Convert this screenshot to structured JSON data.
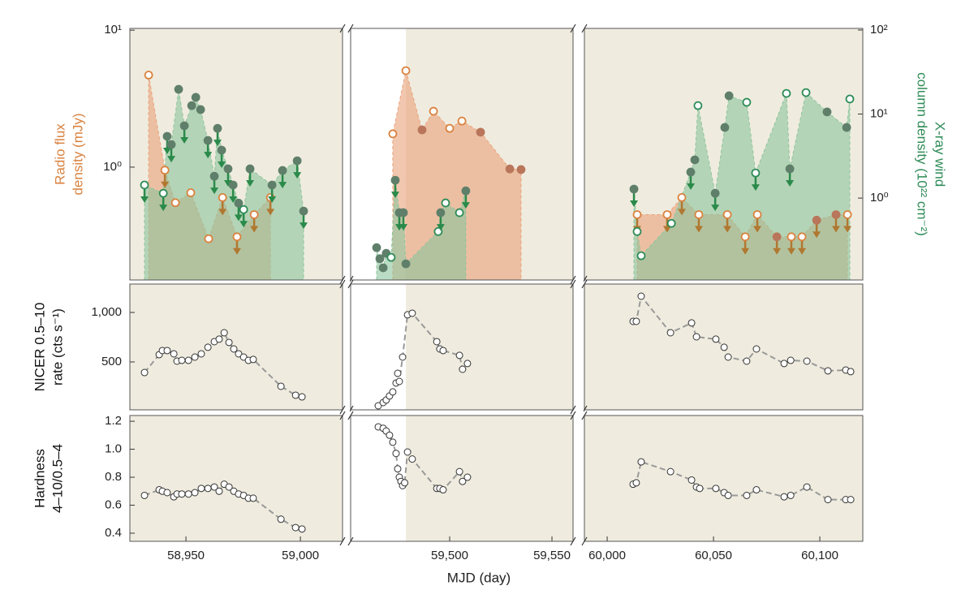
{
  "chart_data": [
    {
      "type": "scatter",
      "xlims": [
        [
          58925.5,
          59018.4
        ],
        [
          59451.6,
          59560.3
        ],
        [
          59989.3,
          60120.2
        ]
      ],
      "ylabel": [
        "Radio flux",
        "density (mJy)"
      ],
      "ylabel_color": "#d9823f",
      "ylim": [
        0.15,
        10.3
      ],
      "ylog": true,
      "yticks": [
        {
          "value": 10,
          "label": "10¹"
        },
        {
          "value": 1,
          "label": "10⁰"
        }
      ],
      "y2label": [
        "X-ray wind",
        "column density (10²² cm⁻²)"
      ],
      "y2label_color": "#2e8b57",
      "y2lim": [
        0.106,
        104.5
      ],
      "y2log": true,
      "y2ticks": [
        {
          "value": 100,
          "label": "10²"
        },
        {
          "value": 10,
          "label": "10¹"
        },
        {
          "value": 1,
          "label": "10⁰"
        }
      ],
      "series": [
        {
          "color": "#d9823f",
          "area_color": "#e9a27a",
          "filled_color": "#b9765a",
          "arrow_color": "#b07830",
          "x": [
            58933.7,
            58940.8,
            58945.4,
            58952.1,
            58959.9,
            58966,
            58972.3,
            58979.8,
            58986.9,
            59472.2,
            59478.6,
            59486.5,
            59492.1,
            59500,
            59506,
            59515.1,
            59529.4,
            59534.9,
            60014.1,
            60028.2,
            60035.1,
            60043.1,
            60056.5,
            60064.9,
            60070.6,
            60079.8,
            60086.6,
            60091.6,
            60098.5,
            60107.6,
            60113
          ],
          "values": [
            4.7,
            0.95,
            0.55,
            0.65,
            0.3,
            0.6,
            0.31,
            0.45,
            0.6,
            1.75,
            5.06,
            1.87,
            2.56,
            1.92,
            2.17,
            1.8,
            0.97,
            0.96,
            0.45,
            0.45,
            0.6,
            0.45,
            0.45,
            0.31,
            0.45,
            0.31,
            0.31,
            0.31,
            0.41,
            0.45,
            0.45
          ],
          "upper_limit": [
            false,
            true,
            false,
            false,
            false,
            true,
            true,
            true,
            true,
            false,
            false,
            false,
            false,
            false,
            false,
            false,
            false,
            false,
            true,
            true,
            true,
            true,
            true,
            true,
            true,
            true,
            true,
            true,
            true,
            true,
            true
          ],
          "filled": [
            false,
            false,
            false,
            false,
            false,
            false,
            false,
            false,
            false,
            false,
            false,
            true,
            false,
            false,
            false,
            true,
            true,
            true,
            false,
            false,
            false,
            false,
            false,
            false,
            false,
            true,
            false,
            false,
            true,
            true,
            false
          ]
        },
        {
          "color": "#2e8b57",
          "area_color": "#8cc59c",
          "filled_color": "#5f7f6a",
          "arrow_color": "#2a8a4a",
          "axis": "y2",
          "x": [
            58931.9,
            58940.1,
            58941.8,
            58943.6,
            58946.8,
            58949.3,
            58952.5,
            58954.3,
            58956.4,
            58959.6,
            58962.4,
            58963.8,
            58965.6,
            58968.4,
            58970.6,
            58973.0,
            58975.2,
            58978.0,
            58987.6,
            58992.2,
            58998.6,
            59001.4,
            59464.3,
            59465.9,
            59467.5,
            59469,
            59471.4,
            59473.4,
            59475.4,
            59477.4,
            59478.6,
            59494.4,
            59495.6,
            59498,
            59504.8,
            59507.9,
            60012.6,
            60014.1,
            60016,
            60030.2,
            60039.3,
            60041.2,
            60042.7,
            60050.8,
            60055.3,
            60057.3,
            60065.6,
            60069.8,
            60084.3,
            60085.9,
            60093.5,
            60103.4,
            60112.6,
            60114.1
          ],
          "values": [
            1.43,
            1.14,
            5.43,
            4.34,
            19.7,
            7.25,
            12.6,
            15.8,
            11.3,
            4.85,
            1.82,
            6.76,
            3.72,
            2.23,
            1.43,
            0.87,
            0.73,
            2.23,
            1.43,
            2.13,
            2.78,
            0.7,
            0.257,
            0.19,
            0.148,
            0.22,
            0.197,
            1.63,
            0.67,
            0.67,
            0.165,
            0.4,
            0.67,
            0.875,
            0.67,
            1.22,
            1.28,
            0.4,
            0.206,
            0.5,
            2.04,
            2.85,
            12.6,
            1.14,
            6.92,
            16.5,
            13.8,
            1.99,
            17.6,
            2.23,
            18,
            10.6,
            6.92,
            15.1
          ],
          "upper_limit": [
            true,
            true,
            true,
            true,
            false,
            true,
            false,
            false,
            false,
            true,
            true,
            true,
            true,
            true,
            true,
            true,
            true,
            true,
            true,
            true,
            true,
            true,
            false,
            false,
            false,
            false,
            false,
            true,
            true,
            true,
            false,
            false,
            true,
            false,
            false,
            true,
            true,
            false,
            false,
            false,
            true,
            false,
            false,
            true,
            false,
            false,
            false,
            true,
            false,
            true,
            false,
            false,
            false,
            false
          ],
          "filled": [
            false,
            false,
            true,
            true,
            true,
            true,
            true,
            true,
            true,
            true,
            true,
            true,
            true,
            true,
            true,
            true,
            false,
            true,
            true,
            true,
            true,
            true,
            true,
            true,
            true,
            true,
            false,
            true,
            true,
            true,
            true,
            false,
            true,
            false,
            false,
            true,
            true,
            false,
            false,
            false,
            true,
            true,
            false,
            true,
            true,
            true,
            false,
            false,
            false,
            true,
            false,
            true,
            true,
            false
          ]
        }
      ]
    },
    {
      "type": "line",
      "xlims": [
        [
          58925.5,
          59018.4
        ],
        [
          59451.6,
          59560.3
        ],
        [
          59989.3,
          60120.2
        ]
      ],
      "ylabel": [
        "NICER 0.5–10",
        "rate (cts s⁻¹)"
      ],
      "ylabel_color": "#111111",
      "ylim": [
        16,
        1287
      ],
      "ylog": false,
      "yticks": [
        500,
        {
          "value": 1000,
          "label": "1,000"
        }
      ],
      "color": "#999999",
      "x": [
        58931.9,
        58938.3,
        58939.7,
        58941.8,
        58944.7,
        58946.1,
        58948.2,
        58951.1,
        58953.9,
        58956.7,
        58959.6,
        58962.4,
        58964.5,
        58966.7,
        58968.8,
        58970.9,
        58973,
        58975.2,
        58977.3,
        58979.4,
        58991.5,
        58997.9,
        59000.7,
        59465.1,
        59467.5,
        59469,
        59470.6,
        59472.2,
        59473.8,
        59474.6,
        59475.4,
        59477,
        59479.4,
        59481.7,
        59493.7,
        59495.2,
        59496.8,
        59504.8,
        59506.3,
        59508.7,
        60012.2,
        60013.7,
        60016,
        60029.8,
        60039.7,
        60042,
        60051.1,
        60055,
        60056.9,
        60065.6,
        60070.2,
        60083.2,
        60086.3,
        60093.9,
        60103.8,
        60112.2,
        60114.5
      ],
      "values": [
        393,
        574,
        615,
        615,
        582,
        508,
        516,
        516,
        549,
        582,
        648,
        705,
        730,
        795,
        697,
        631,
        582,
        549,
        516,
        525,
        254,
        164,
        147,
        57,
        90,
        115,
        156,
        197,
        287,
        385,
        303,
        549,
        976,
        992,
        705,
        631,
        615,
        566,
        426,
        484,
        910,
        910,
        1164,
        795,
        894,
        754,
        730,
        648,
        549,
        508,
        631,
        484,
        516,
        508,
        410,
        418,
        402
      ]
    },
    {
      "type": "line",
      "xlims": [
        [
          58925.5,
          59018.4
        ],
        [
          59451.6,
          59560.3
        ],
        [
          59989.3,
          60120.2
        ]
      ],
      "ylabel": [
        "Hardness",
        "4–10/0.5–4"
      ],
      "ylabel_color": "#111111",
      "ylim": [
        0.342,
        1.241
      ],
      "ylog": false,
      "yticks": [
        0.4,
        0.6,
        0.8,
        {
          "value": 1,
          "label": "1.0"
        },
        1.2
      ],
      "color": "#999999",
      "xlabel": "MJD (day)",
      "xticks": [
        {
          "value": 58950,
          "label": "58,950"
        },
        {
          "value": 59000,
          "label": "59,000"
        },
        {
          "value": 59500,
          "label": "59,500"
        },
        {
          "value": 59550,
          "label": "59,550"
        },
        {
          "value": 60000,
          "label": "60,000"
        },
        {
          "value": 60050,
          "label": "60,050"
        },
        {
          "value": 60100,
          "label": "60,100"
        }
      ],
      "x": [
        58931.9,
        58938.3,
        58939.7,
        58941.8,
        58944.7,
        58946.1,
        58948.2,
        58951.1,
        58953.9,
        58956.7,
        58959.6,
        58962.4,
        58964.5,
        58966.7,
        58968.8,
        58970.9,
        58973,
        58975.2,
        58977.3,
        58979.4,
        58991.5,
        58997.9,
        59000.7,
        59465.1,
        59467.5,
        59469,
        59470.6,
        59472.2,
        59473.8,
        59474.6,
        59475.4,
        59476.2,
        59477,
        59478,
        59479.4,
        59481.7,
        59493.7,
        59495.2,
        59496.8,
        59504.8,
        59506.3,
        59508.7,
        60012.2,
        60013.7,
        60016,
        60029.8,
        60039.7,
        60042,
        60043.5,
        60051.1,
        60055,
        60056.9,
        60065.6,
        60070.2,
        60083.2,
        60086.3,
        60093.9,
        60103.8,
        60112.2,
        60114.5
      ],
      "values": [
        0.67,
        0.71,
        0.7,
        0.69,
        0.66,
        0.68,
        0.68,
        0.68,
        0.69,
        0.72,
        0.72,
        0.73,
        0.7,
        0.75,
        0.73,
        0.7,
        0.68,
        0.67,
        0.65,
        0.65,
        0.5,
        0.44,
        0.43,
        1.16,
        1.15,
        1.13,
        1.1,
        1.05,
        0.97,
        0.86,
        0.8,
        0.77,
        0.74,
        0.76,
        0.98,
        0.93,
        0.72,
        0.72,
        0.71,
        0.84,
        0.77,
        0.8,
        0.75,
        0.76,
        0.91,
        0.84,
        0.78,
        0.73,
        0.72,
        0.72,
        0.69,
        0.67,
        0.67,
        0.71,
        0.66,
        0.67,
        0.73,
        0.64,
        0.64,
        0.64
      ]
    }
  ]
}
